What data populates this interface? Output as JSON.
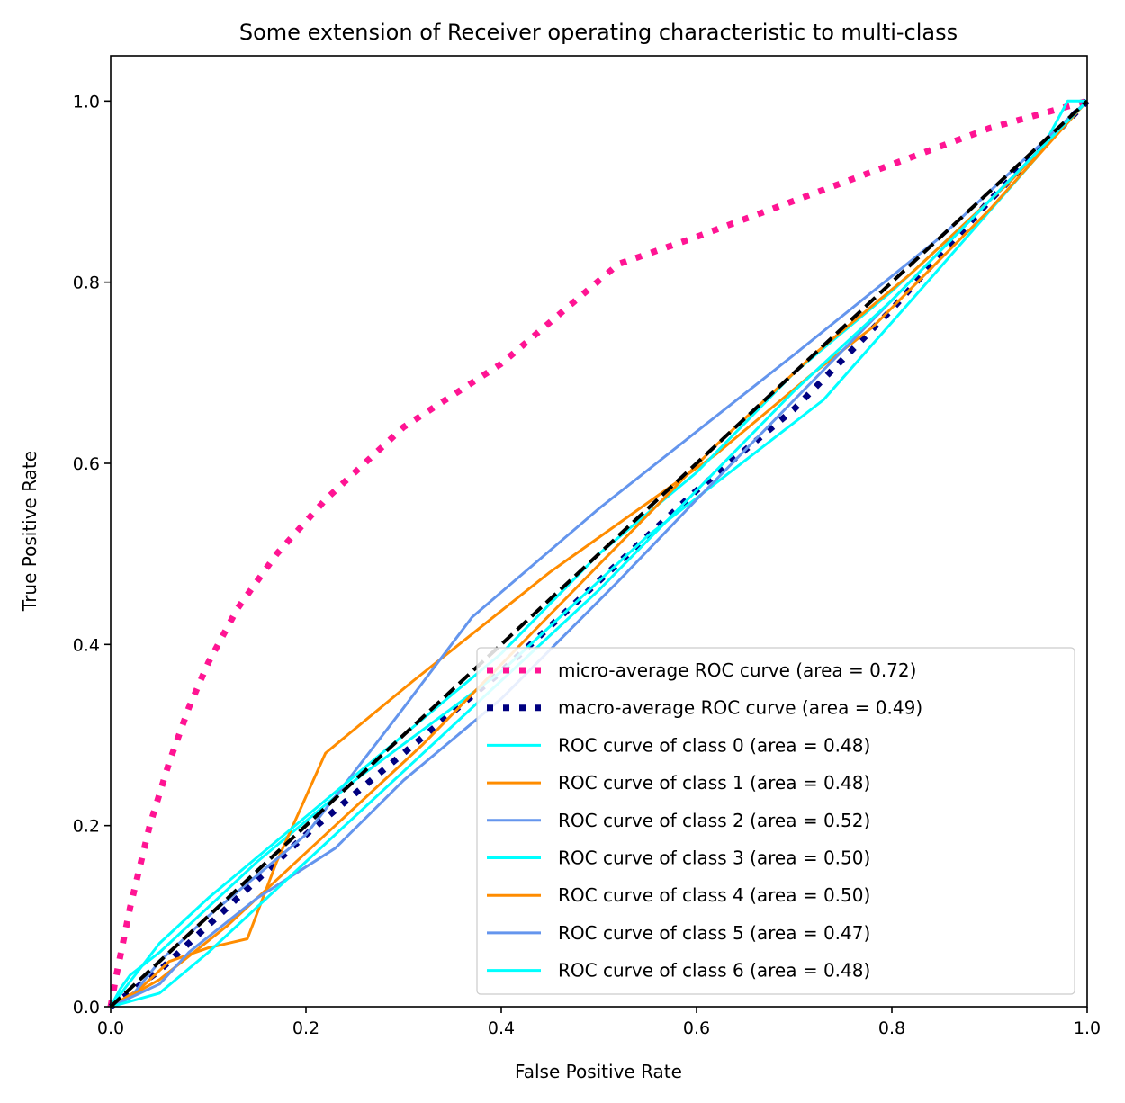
{
  "chart_data": {
    "type": "line",
    "title": "Some extension of Receiver operating characteristic to multi-class",
    "xlabel": "False Positive Rate",
    "ylabel": "True Positive Rate",
    "xlim": [
      0.0,
      1.0
    ],
    "ylim": [
      0.0,
      1.05
    ],
    "xticks": [
      "0.0",
      "0.2",
      "0.4",
      "0.6",
      "0.8",
      "1.0"
    ],
    "yticks": [
      "0.0",
      "0.2",
      "0.4",
      "0.6",
      "0.8",
      "1.0"
    ],
    "grid": false,
    "legend_position": "lower-right",
    "series": [
      {
        "name": "micro-average ROC curve (area = 0.72)",
        "color": "#ff1493",
        "style": "dotted",
        "x": [
          0.0,
          0.005,
          0.02,
          0.04,
          0.06,
          0.08,
          0.1,
          0.13,
          0.17,
          0.22,
          0.3,
          0.4,
          0.52,
          0.6,
          0.7,
          0.8,
          0.9,
          1.0
        ],
        "y": [
          0.0,
          0.03,
          0.11,
          0.2,
          0.27,
          0.33,
          0.38,
          0.44,
          0.5,
          0.56,
          0.64,
          0.71,
          0.82,
          0.85,
          0.89,
          0.93,
          0.97,
          1.0
        ]
      },
      {
        "name": "macro-average ROC curve (area = 0.49)",
        "color": "#000080",
        "style": "dotted",
        "x": [
          0.0,
          0.05,
          0.1,
          0.2,
          0.3,
          0.4,
          0.5,
          0.6,
          0.7,
          0.8,
          0.9,
          1.0
        ],
        "y": [
          0.0,
          0.04,
          0.09,
          0.19,
          0.28,
          0.37,
          0.47,
          0.57,
          0.66,
          0.77,
          0.89,
          1.0
        ]
      },
      {
        "name": "ROC curve of class 0 (area = 0.48)",
        "color": "#00ffff",
        "style": "solid",
        "x": [
          0.0,
          0.01,
          0.02,
          0.05,
          0.15,
          0.25,
          0.4,
          0.55,
          0.73,
          0.82,
          0.95,
          0.98,
          1.0
        ],
        "y": [
          0.0,
          0.02,
          0.035,
          0.06,
          0.16,
          0.25,
          0.37,
          0.52,
          0.67,
          0.78,
          0.94,
          1.0,
          1.0
        ]
      },
      {
        "name": "ROC curve of class 1 (area = 0.48)",
        "color": "#ff8c00",
        "style": "solid",
        "x": [
          0.0,
          0.03,
          0.06,
          0.1,
          0.14,
          0.17,
          0.22,
          0.31,
          0.45,
          0.62,
          0.72,
          0.78,
          0.9,
          1.0
        ],
        "y": [
          0.0,
          0.02,
          0.05,
          0.065,
          0.075,
          0.16,
          0.28,
          0.36,
          0.48,
          0.61,
          0.7,
          0.75,
          0.88,
          1.0
        ]
      },
      {
        "name": "ROC curve of class 2 (area = 0.52)",
        "color": "#6495ed",
        "style": "solid",
        "x": [
          0.0,
          0.02,
          0.05,
          0.1,
          0.2,
          0.3,
          0.37,
          0.5,
          0.7,
          0.85,
          1.0
        ],
        "y": [
          0.0,
          0.01,
          0.05,
          0.1,
          0.19,
          0.33,
          0.43,
          0.55,
          0.72,
          0.85,
          1.0
        ]
      },
      {
        "name": "ROC curve of class 3 (area = 0.50)",
        "color": "#00ffff",
        "style": "solid",
        "x": [
          0.0,
          0.05,
          0.1,
          0.2,
          0.3,
          0.4,
          0.5,
          0.6,
          0.7,
          0.8,
          0.9,
          1.0
        ],
        "y": [
          0.0,
          0.07,
          0.12,
          0.21,
          0.3,
          0.39,
          0.5,
          0.59,
          0.7,
          0.79,
          0.89,
          1.0
        ]
      },
      {
        "name": "ROC curve of class 4 (area = 0.50)",
        "color": "#ff8c00",
        "style": "solid",
        "x": [
          0.0,
          0.05,
          0.12,
          0.22,
          0.32,
          0.42,
          0.52,
          0.62,
          0.72,
          0.82,
          0.92,
          1.0
        ],
        "y": [
          0.0,
          0.03,
          0.09,
          0.19,
          0.29,
          0.4,
          0.51,
          0.62,
          0.72,
          0.81,
          0.91,
          1.0
        ]
      },
      {
        "name": "ROC curve of class 5 (area = 0.47)",
        "color": "#6495ed",
        "style": "solid",
        "x": [
          0.0,
          0.03,
          0.05,
          0.08,
          0.15,
          0.23,
          0.3,
          0.4,
          0.52,
          0.6,
          0.7,
          0.8,
          0.9,
          1.0
        ],
        "y": [
          0.0,
          0.015,
          0.025,
          0.06,
          0.12,
          0.175,
          0.25,
          0.34,
          0.47,
          0.56,
          0.67,
          0.78,
          0.89,
          1.0
        ]
      },
      {
        "name": "ROC curve of class 6 (area = 0.48)",
        "color": "#00ffff",
        "style": "solid",
        "x": [
          0.0,
          0.05,
          0.1,
          0.2,
          0.3,
          0.4,
          0.5,
          0.6,
          0.7,
          0.8,
          0.9,
          1.0
        ],
        "y": [
          0.0,
          0.015,
          0.06,
          0.16,
          0.26,
          0.36,
          0.46,
          0.57,
          0.68,
          0.78,
          0.89,
          1.0
        ]
      },
      {
        "name": "",
        "color": "#000000",
        "style": "dashed",
        "x": [
          0.0,
          1.0
        ],
        "y": [
          0.0,
          1.0
        ]
      }
    ]
  }
}
